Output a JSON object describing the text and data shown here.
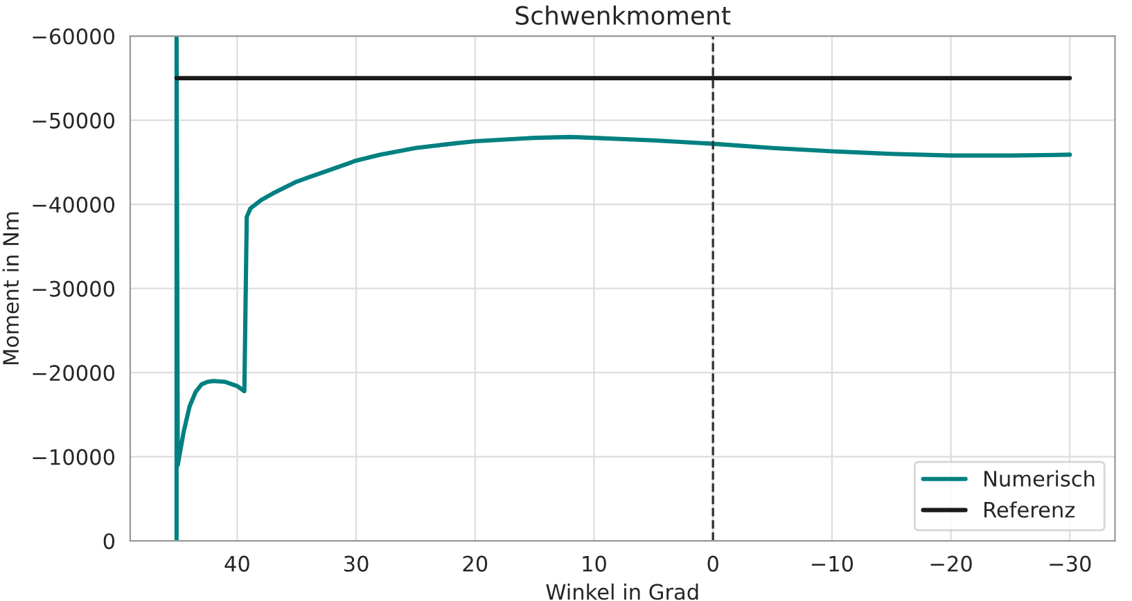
{
  "chart_data": {
    "type": "line",
    "title": "Schwenkmoment",
    "xlabel": "Winkel in Grad",
    "ylabel": "Moment in Nm",
    "xlim": [
      49,
      -33.8
    ],
    "ylim": [
      0,
      -60000
    ],
    "xticks": [
      40,
      30,
      20,
      10,
      0,
      -10,
      -20,
      -30
    ],
    "yticks": [
      {
        "value": 0,
        "label": "0"
      },
      {
        "value": -10000,
        "label": "−10000"
      },
      {
        "value": -20000,
        "label": "−20000"
      },
      {
        "value": -30000,
        "label": "−30000"
      },
      {
        "value": -40000,
        "label": "−40000"
      },
      {
        "value": -50000,
        "label": "−50000"
      },
      {
        "value": -60000,
        "label": "−60000"
      }
    ],
    "series": [
      {
        "name": "Numerisch",
        "color": "#008080",
        "x": [
          45.1,
          45.1,
          45.0,
          44.5,
          44,
          43.5,
          43,
          42.5,
          42,
          41,
          40,
          39.4,
          39.2,
          38.9,
          38,
          37,
          36,
          35,
          34,
          32,
          30,
          28,
          25,
          22,
          20,
          15,
          12,
          10,
          5,
          0,
          -5,
          -10,
          -15,
          -20,
          -25,
          -30
        ],
        "values": [
          0,
          -60000,
          -9000,
          -13000,
          -16000,
          -17700,
          -18600,
          -18900,
          -19000,
          -18900,
          -18400,
          -17800,
          -38500,
          -39500,
          -40500,
          -41300,
          -42000,
          -42700,
          -43200,
          -44200,
          -45200,
          -45900,
          -46700,
          -47200,
          -47500,
          -47900,
          -48000,
          -47900,
          -47600,
          -47200,
          -46700,
          -46300,
          -46000,
          -45800,
          -45800,
          -45900
        ]
      },
      {
        "name": "Referenz",
        "color": "#1a1a1a",
        "x": [
          45.1,
          -30
        ],
        "values": [
          -55000,
          -55000
        ]
      }
    ],
    "ref_lines": [
      {
        "axis": "x",
        "value": 0,
        "color": "#333333",
        "line_style": "dashed"
      }
    ],
    "grid": true,
    "legend": "bottom right"
  }
}
